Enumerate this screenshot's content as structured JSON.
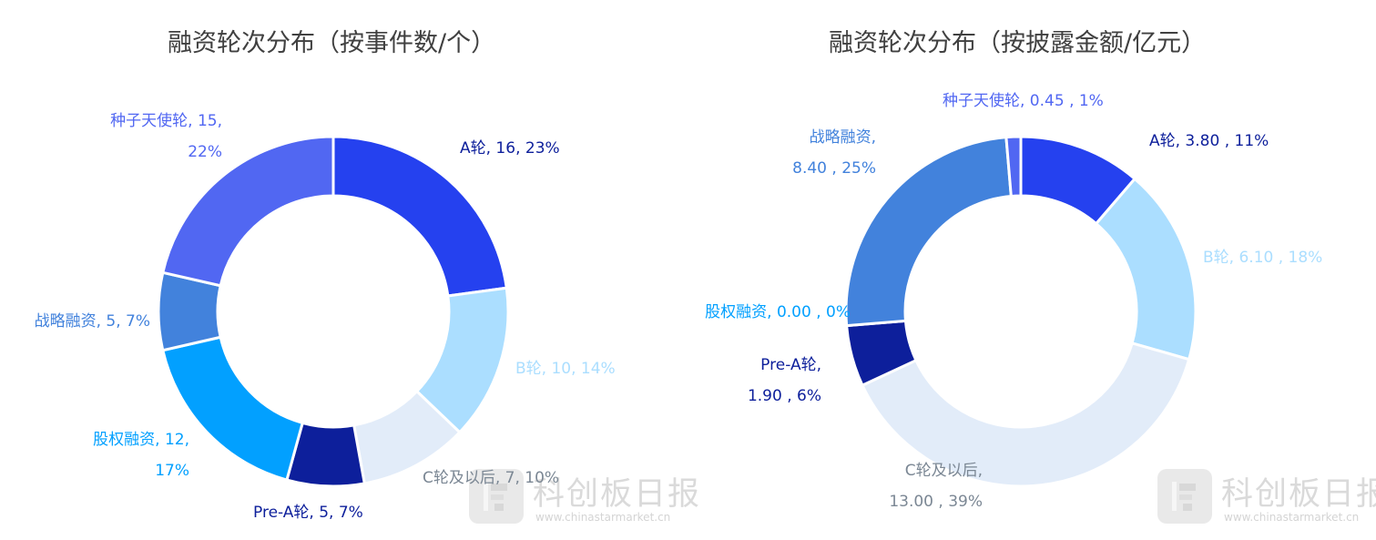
{
  "colors": {
    "A": "#2541ef",
    "B": "#abdeff",
    "C": "#e2ecf9",
    "PreA": "#0d1f9b",
    "Equity": "#02a0ff",
    "Strategic": "#4282dc",
    "Seed": "#5167f2",
    "title": "#404040",
    "C_label": "#7b8794"
  },
  "watermark": {
    "brand": "科创板日报",
    "url": "www.chinastarmarket.cn"
  },
  "chart_data": [
    {
      "type": "pie",
      "title": "融资轮次分布（按事件数/个）",
      "donut": true,
      "categories": [
        "A轮",
        "B轮",
        "C轮及以后",
        "Pre-A轮",
        "股权融资",
        "战略融资",
        "种子天使轮"
      ],
      "values": [
        16,
        10,
        7,
        5,
        12,
        5,
        15
      ],
      "percents": [
        "23%",
        "14%",
        "10%",
        "7%",
        "17%",
        "7%",
        "22%"
      ],
      "labels": [
        "A轮, 16, 23%",
        "B轮, 10, 14%",
        "C轮及以后, 7, 10%",
        "Pre-A轮, 5, 7%",
        "股权融资, 12,|17%",
        "战略融资, 5, 7%",
        "种子天使轮, 15,|22%"
      ]
    },
    {
      "type": "pie",
      "title": "融资轮次分布（按披露金额/亿元）",
      "donut": true,
      "categories": [
        "A轮",
        "B轮",
        "C轮及以后",
        "Pre-A轮",
        "股权融资",
        "战略融资",
        "种子天使轮"
      ],
      "values": [
        3.8,
        6.1,
        13.0,
        1.9,
        0.0,
        8.4,
        0.45
      ],
      "percents": [
        "11%",
        "18%",
        "39%",
        "6%",
        "0%",
        "25%",
        "1%"
      ],
      "labels": [
        "A轮, 3.80 , 11%",
        "B轮, 6.10 , 18%",
        "C轮及以后,|13.00 , 39%",
        "Pre-A轮,|1.90 , 6%",
        "股权融资, 0.00 , 0%",
        "战略融资,|8.40 , 25%",
        "种子天使轮, 0.45 , 1%"
      ]
    }
  ]
}
